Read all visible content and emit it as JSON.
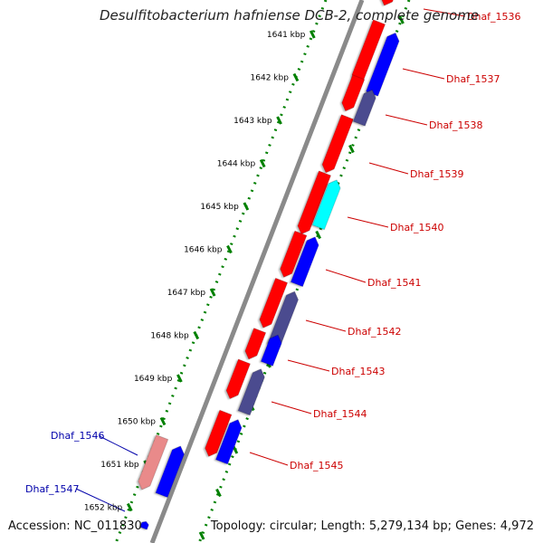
{
  "title": "Desulfitobacterium hafniense DCB-2, complete genome",
  "footer": {
    "accession": "Accession: NC_011830",
    "topology": "Topology: circular; Length: 5,279,134 bp; Genes: 4,972"
  },
  "colors": {
    "forward_cds": "#ff0000",
    "reverse_cds": "#0000ff",
    "dim_forward": "#e98a8a",
    "slate": "#4b4b8f",
    "cyan": "#00ffff",
    "ticks": "#008000",
    "backbone": "#808080",
    "label_right": "#cc0000",
    "label_left": "#0000aa"
  },
  "ticks": [
    "1641 kbp",
    "1642 kbp",
    "1643 kbp",
    "1644 kbp",
    "1645 kbp",
    "1646 kbp",
    "1647 kbp",
    "1648 kbp",
    "1649 kbp",
    "1650 kbp",
    "1651 kbp",
    "1652 kbp"
  ],
  "genes_right": [
    "Dhaf_1536",
    "Dhaf_1537",
    "Dhaf_1538",
    "Dhaf_1539",
    "Dhaf_1540",
    "Dhaf_1541",
    "Dhaf_1542",
    "Dhaf_1543",
    "Dhaf_1544",
    "Dhaf_1545"
  ],
  "genes_left": [
    "Dhaf_1546",
    "Dhaf_1547"
  ]
}
